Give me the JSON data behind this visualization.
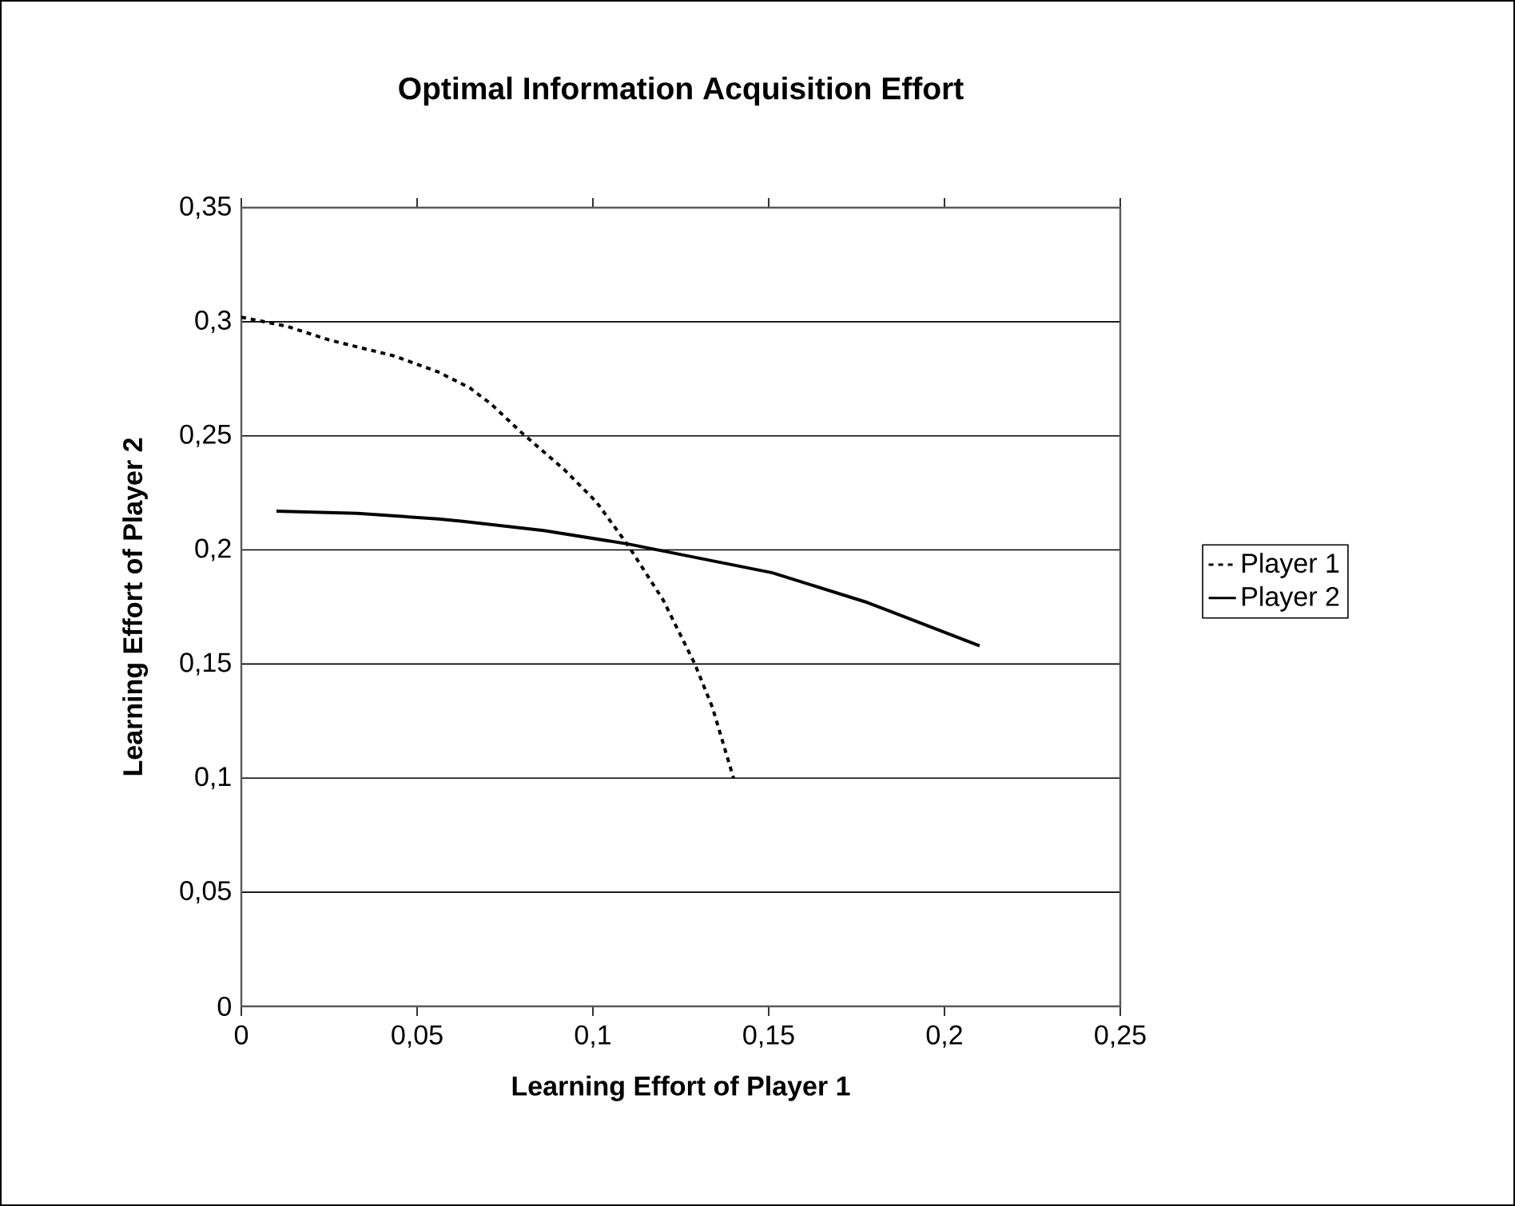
{
  "chart_data": {
    "type": "line",
    "title": "Optimal Information Acquisition Effort",
    "xlabel": "Learning Effort of Player 1",
    "ylabel": "Learning Effort of Player 2",
    "xlim": [
      0,
      0.25
    ],
    "ylim": [
      0,
      0.35
    ],
    "xticks": [
      0,
      {
        "value": 0.05,
        "label": "0,05"
      },
      {
        "value": 0.1,
        "label": "0,1"
      },
      {
        "value": 0.15,
        "label": "0,15"
      },
      {
        "value": 0.2,
        "label": "0,2"
      },
      {
        "value": 0.25,
        "label": "0,25"
      }
    ],
    "yticks": [
      0,
      {
        "value": 0.05,
        "label": "0,05"
      },
      {
        "value": 0.1,
        "label": "0,1"
      },
      {
        "value": 0.15,
        "label": "0,15"
      },
      {
        "value": 0.2,
        "label": "0,2"
      },
      {
        "value": 0.25,
        "label": "0,25"
      },
      {
        "value": 0.3,
        "label": "0,3"
      },
      {
        "value": 0.35,
        "label": "0,35"
      }
    ],
    "grid": "y",
    "legend": "right",
    "marker": "none",
    "series": [
      {
        "name": "Player 1",
        "color": "#000000",
        "line_style": "dotted",
        "x": [
          0,
          0.013,
          0.025,
          0.0435,
          0.056,
          0.065,
          0.071,
          0.08,
          0.092,
          0.101,
          0.11,
          0.12,
          0.129,
          0.134,
          0.14
        ],
        "values": [
          0.302,
          0.298,
          0.292,
          0.285,
          0.278,
          0.271,
          0.264,
          0.251,
          0.235,
          0.221,
          0.202,
          0.178,
          0.15,
          0.131,
          0.1
        ]
      },
      {
        "name": "Player 2",
        "color": "#000000",
        "line_style": "solid",
        "x": [
          0.01,
          0.033,
          0.056,
          0.063,
          0.086,
          0.11,
          0.151,
          0.178,
          0.21
        ],
        "values": [
          0.217,
          0.216,
          0.2136,
          0.2125,
          0.2085,
          0.2026,
          0.19,
          0.177,
          0.158
        ]
      }
    ]
  }
}
